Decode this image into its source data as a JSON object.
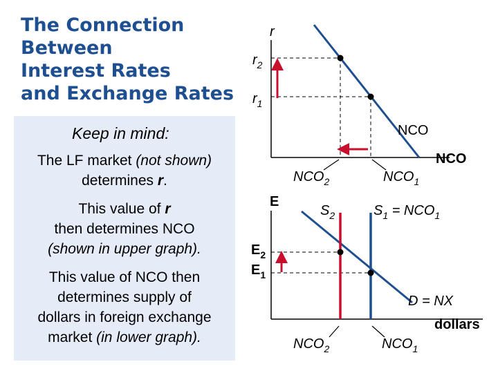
{
  "title": {
    "line1": "The Connection",
    "line2": "Between",
    "line3": "Interest Rates",
    "line4": "and Exchange Rates"
  },
  "keep_in_mind": {
    "heading": "Keep in mind:",
    "p1_a": "The LF market",
    "p1_b": " (not shown)",
    "p1_c": "determines ",
    "p1_r": "r",
    "p1_d": ".",
    "p2_a": "This value of ",
    "p2_r": "r",
    "p2_b": "then determines NCO",
    "p2_c": "(shown in upper graph).",
    "p3_a": "This value of NCO then",
    "p3_b": "determines supply of",
    "p3_c": "dollars in foreign exchange",
    "p3_d": "market",
    "p3_e": " (in lower graph)."
  },
  "upper_graph": {
    "y_axis_label": "r",
    "r2": "r",
    "r2_sub": "2",
    "r1": "r",
    "r1_sub": "1",
    "curve_label": "NCO",
    "x_axis_label": "NCO",
    "nco2": "NCO",
    "nco2_sub": "2",
    "nco1": "NCO",
    "nco1_sub": "1"
  },
  "lower_graph": {
    "y_axis_label": "E",
    "e2": "E",
    "e2_sub": "2",
    "e1": "E",
    "e1_sub": "1",
    "s2": "S",
    "s2_sub": "2",
    "s1": "S",
    "s1_sub": "1",
    "s1_eq": " = NCO",
    "s1_eq_sub": "1",
    "demand_label": "D = NX",
    "x_axis_label": "dollars",
    "nco2": "NCO",
    "nco2_sub": "2",
    "nco1": "NCO",
    "nco1_sub": "1"
  },
  "colors": {
    "title": "#1e4f91",
    "box": "#e6ecf7",
    "curve": "#1e4f91",
    "supply_s1": "#1e4f91",
    "supply_s2": "#c8102e",
    "arrows": "#c8102e"
  }
}
